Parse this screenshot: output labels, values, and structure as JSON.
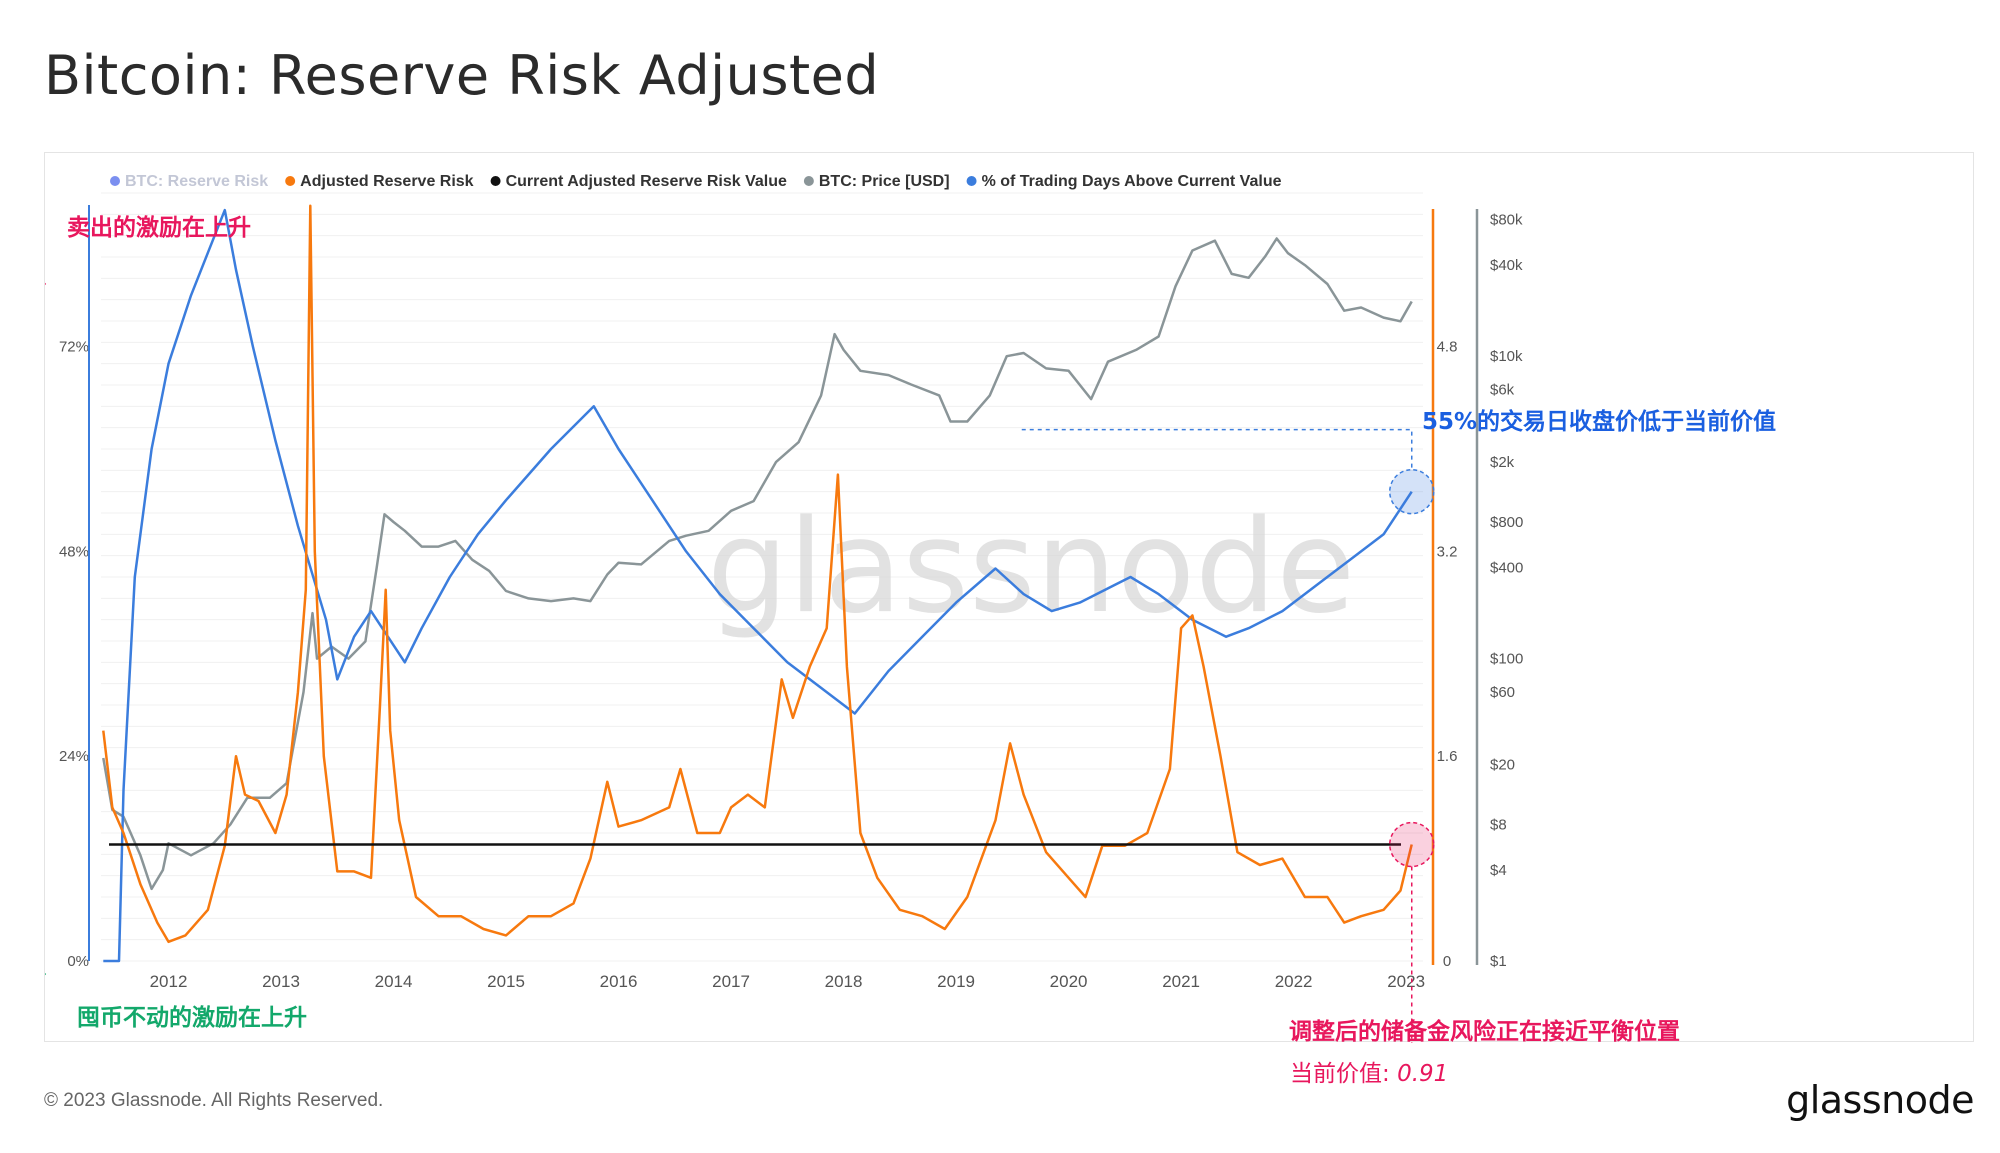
{
  "page": {
    "title": "Bitcoin: Reserve Risk Adjusted",
    "copyright": "© 2023 Glassnode. All Rights Reserved.",
    "brand": "glassnode",
    "watermark": "glassnode"
  },
  "legend": [
    {
      "label": "BTC: Reserve Risk",
      "color": "#7b8ff0",
      "dim": true
    },
    {
      "label": "Adjusted Reserve Risk",
      "color": "#f7790e",
      "dim": false
    },
    {
      "label": "Current Adjusted Reserve Risk Value",
      "color": "#111111",
      "dim": false
    },
    {
      "label": "BTC: Price [USD]",
      "color": "#8a9598",
      "dim": false
    },
    {
      "label": "% of Trading Days Above Current Value",
      "color": "#3b7ddd",
      "dim": false
    }
  ],
  "annotations": {
    "sell_incentive": "卖出的激励在上升",
    "hodl_incentive": "囤币不动的激励在上升",
    "days_below": "55%的交易日收盘价低于当前价值",
    "equilibrium": "调整后的储备金风险正在接近平衡位置",
    "current_value_label": "当前价值:",
    "current_value": "0.91"
  },
  "colors": {
    "orange": "#f7790e",
    "blue": "#3b7ddd",
    "gray": "#8a9598",
    "black": "#111111",
    "pink": "#e8175d",
    "green": "#13a86b",
    "annotation_blue": "#1a5fe0"
  },
  "chart_data": {
    "type": "line",
    "x_axis": {
      "ticks": [
        "2012",
        "2013",
        "2014",
        "2015",
        "2016",
        "2017",
        "2018",
        "2019",
        "2020",
        "2021",
        "2022",
        "2023"
      ],
      "range": [
        2011.4,
        2023.15
      ]
    },
    "y_axis_left": {
      "ticks": [
        "0%",
        "24%",
        "48%",
        "72%"
      ],
      "range": [
        0,
        90
      ]
    },
    "y_axis_right_risk": {
      "ticks": [
        "0",
        "1.6",
        "3.2",
        "4.8"
      ],
      "range": [
        0,
        6
      ]
    },
    "y_axis_right_price": {
      "ticks": [
        "$1",
        "$4",
        "$8",
        "$20",
        "$60",
        "$100",
        "$400",
        "$800",
        "$2k",
        "$6k",
        "$10k",
        "$40k",
        "$80k"
      ],
      "scale": "log",
      "range": [
        1,
        120000
      ]
    },
    "current_value": 0.91,
    "series": [
      {
        "name": "Adjusted Reserve Risk",
        "axis": "risk",
        "points": [
          [
            2011.42,
            1.8
          ],
          [
            2011.5,
            1.2
          ],
          [
            2011.6,
            1.0
          ],
          [
            2011.75,
            0.6
          ],
          [
            2011.9,
            0.3
          ],
          [
            2012.0,
            0.15
          ],
          [
            2012.15,
            0.2
          ],
          [
            2012.35,
            0.4
          ],
          [
            2012.5,
            0.9
          ],
          [
            2012.6,
            1.6
          ],
          [
            2012.68,
            1.3
          ],
          [
            2012.8,
            1.25
          ],
          [
            2012.95,
            1.0
          ],
          [
            2013.05,
            1.3
          ],
          [
            2013.15,
            2.1
          ],
          [
            2013.22,
            2.9
          ],
          [
            2013.26,
            5.9
          ],
          [
            2013.3,
            3.2
          ],
          [
            2013.38,
            1.6
          ],
          [
            2013.5,
            0.7
          ],
          [
            2013.65,
            0.7
          ],
          [
            2013.8,
            0.65
          ],
          [
            2013.88,
            2.0
          ],
          [
            2013.93,
            2.9
          ],
          [
            2013.97,
            1.8
          ],
          [
            2014.05,
            1.1
          ],
          [
            2014.2,
            0.5
          ],
          [
            2014.4,
            0.35
          ],
          [
            2014.6,
            0.35
          ],
          [
            2014.8,
            0.25
          ],
          [
            2015.0,
            0.2
          ],
          [
            2015.2,
            0.35
          ],
          [
            2015.4,
            0.35
          ],
          [
            2015.6,
            0.45
          ],
          [
            2015.75,
            0.8
          ],
          [
            2015.9,
            1.4
          ],
          [
            2016.0,
            1.05
          ],
          [
            2016.2,
            1.1
          ],
          [
            2016.45,
            1.2
          ],
          [
            2016.55,
            1.5
          ],
          [
            2016.7,
            1.0
          ],
          [
            2016.9,
            1.0
          ],
          [
            2017.0,
            1.2
          ],
          [
            2017.15,
            1.3
          ],
          [
            2017.3,
            1.2
          ],
          [
            2017.45,
            2.2
          ],
          [
            2017.55,
            1.9
          ],
          [
            2017.7,
            2.3
          ],
          [
            2017.85,
            2.6
          ],
          [
            2017.95,
            3.8
          ],
          [
            2018.03,
            2.3
          ],
          [
            2018.15,
            1.0
          ],
          [
            2018.3,
            0.65
          ],
          [
            2018.5,
            0.4
          ],
          [
            2018.7,
            0.35
          ],
          [
            2018.9,
            0.25
          ],
          [
            2019.1,
            0.5
          ],
          [
            2019.35,
            1.1
          ],
          [
            2019.48,
            1.7
          ],
          [
            2019.6,
            1.3
          ],
          [
            2019.8,
            0.85
          ],
          [
            2020.0,
            0.65
          ],
          [
            2020.15,
            0.5
          ],
          [
            2020.3,
            0.9
          ],
          [
            2020.5,
            0.9
          ],
          [
            2020.7,
            1.0
          ],
          [
            2020.9,
            1.5
          ],
          [
            2021.0,
            2.6
          ],
          [
            2021.1,
            2.7
          ],
          [
            2021.2,
            2.3
          ],
          [
            2021.35,
            1.6
          ],
          [
            2021.5,
            0.85
          ],
          [
            2021.7,
            0.75
          ],
          [
            2021.9,
            0.8
          ],
          [
            2022.1,
            0.5
          ],
          [
            2022.3,
            0.5
          ],
          [
            2022.45,
            0.3
          ],
          [
            2022.6,
            0.35
          ],
          [
            2022.8,
            0.4
          ],
          [
            2022.95,
            0.55
          ],
          [
            2023.05,
            0.91
          ]
        ]
      },
      {
        "name": "BTC: Price [USD]",
        "axis": "price",
        "points": [
          [
            2011.42,
            22
          ],
          [
            2011.5,
            10
          ],
          [
            2011.6,
            9
          ],
          [
            2011.75,
            5
          ],
          [
            2011.85,
            3
          ],
          [
            2011.95,
            4
          ],
          [
            2012.0,
            6
          ],
          [
            2012.2,
            5
          ],
          [
            2012.4,
            6
          ],
          [
            2012.55,
            8
          ],
          [
            2012.7,
            12
          ],
          [
            2012.9,
            12
          ],
          [
            2013.05,
            15
          ],
          [
            2013.2,
            60
          ],
          [
            2013.28,
            200
          ],
          [
            2013.32,
            100
          ],
          [
            2013.45,
            120
          ],
          [
            2013.6,
            100
          ],
          [
            2013.75,
            130
          ],
          [
            2013.85,
            400
          ],
          [
            2013.92,
            900
          ],
          [
            2014.0,
            800
          ],
          [
            2014.1,
            700
          ],
          [
            2014.25,
            550
          ],
          [
            2014.4,
            550
          ],
          [
            2014.55,
            600
          ],
          [
            2014.7,
            450
          ],
          [
            2014.85,
            380
          ],
          [
            2015.0,
            280
          ],
          [
            2015.2,
            250
          ],
          [
            2015.4,
            240
          ],
          [
            2015.6,
            250
          ],
          [
            2015.75,
            240
          ],
          [
            2015.9,
            360
          ],
          [
            2016.0,
            430
          ],
          [
            2016.2,
            420
          ],
          [
            2016.45,
            600
          ],
          [
            2016.6,
            650
          ],
          [
            2016.8,
            700
          ],
          [
            2017.0,
            950
          ],
          [
            2017.2,
            1100
          ],
          [
            2017.4,
            2000
          ],
          [
            2017.6,
            2700
          ],
          [
            2017.8,
            5500
          ],
          [
            2017.92,
            14000
          ],
          [
            2018.0,
            11000
          ],
          [
            2018.15,
            8000
          ],
          [
            2018.4,
            7500
          ],
          [
            2018.6,
            6500
          ],
          [
            2018.85,
            5500
          ],
          [
            2018.95,
            3700
          ],
          [
            2019.1,
            3700
          ],
          [
            2019.3,
            5500
          ],
          [
            2019.45,
            10000
          ],
          [
            2019.6,
            10500
          ],
          [
            2019.8,
            8300
          ],
          [
            2020.0,
            8000
          ],
          [
            2020.2,
            5200
          ],
          [
            2020.35,
            9200
          ],
          [
            2020.6,
            11000
          ],
          [
            2020.8,
            13500
          ],
          [
            2020.95,
            29000
          ],
          [
            2021.1,
            50000
          ],
          [
            2021.3,
            58000
          ],
          [
            2021.45,
            35000
          ],
          [
            2021.6,
            33000
          ],
          [
            2021.75,
            46000
          ],
          [
            2021.85,
            60000
          ],
          [
            2021.95,
            48000
          ],
          [
            2022.1,
            40000
          ],
          [
            2022.3,
            30000
          ],
          [
            2022.45,
            20000
          ],
          [
            2022.6,
            21000
          ],
          [
            2022.8,
            18000
          ],
          [
            2022.95,
            17000
          ],
          [
            2023.05,
            23000
          ]
        ]
      },
      {
        "name": "% of Trading Days Above Current Value",
        "axis": "percent",
        "points": [
          [
            2011.42,
            0
          ],
          [
            2011.56,
            0
          ],
          [
            2011.6,
            20
          ],
          [
            2011.7,
            45
          ],
          [
            2011.85,
            60
          ],
          [
            2012.0,
            70
          ],
          [
            2012.2,
            78
          ],
          [
            2012.35,
            83
          ],
          [
            2012.5,
            88
          ],
          [
            2012.6,
            81
          ],
          [
            2012.75,
            72
          ],
          [
            2012.95,
            61
          ],
          [
            2013.15,
            51
          ],
          [
            2013.4,
            40
          ],
          [
            2013.5,
            33
          ],
          [
            2013.65,
            38
          ],
          [
            2013.8,
            41
          ],
          [
            2013.95,
            38
          ],
          [
            2014.1,
            35
          ],
          [
            2014.25,
            39
          ],
          [
            2014.5,
            45
          ],
          [
            2014.75,
            50
          ],
          [
            2015.0,
            54
          ],
          [
            2015.4,
            60
          ],
          [
            2015.78,
            65
          ],
          [
            2016.0,
            60
          ],
          [
            2016.3,
            54
          ],
          [
            2016.6,
            48
          ],
          [
            2016.9,
            43
          ],
          [
            2017.2,
            39
          ],
          [
            2017.5,
            35
          ],
          [
            2017.8,
            32
          ],
          [
            2018.1,
            29
          ],
          [
            2018.4,
            34
          ],
          [
            2018.7,
            38
          ],
          [
            2019.0,
            42
          ],
          [
            2019.35,
            46
          ],
          [
            2019.6,
            43
          ],
          [
            2019.85,
            41
          ],
          [
            2020.1,
            42
          ],
          [
            2020.4,
            44
          ],
          [
            2020.55,
            45
          ],
          [
            2020.8,
            43
          ],
          [
            2021.1,
            40
          ],
          [
            2021.4,
            38
          ],
          [
            2021.6,
            39
          ],
          [
            2021.9,
            41
          ],
          [
            2022.2,
            44
          ],
          [
            2022.5,
            47
          ],
          [
            2022.8,
            50
          ],
          [
            2023.05,
            55
          ]
        ]
      }
    ]
  }
}
